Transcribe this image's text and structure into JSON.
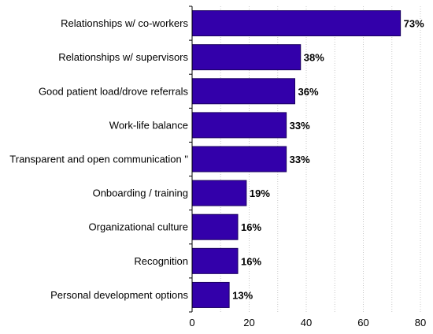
{
  "chart_data": {
    "type": "bar",
    "orientation": "horizontal",
    "categories": [
      "Relationships w/ co-workers",
      "Relationships w/ supervisors",
      "Good patient load/drove referrals",
      "Work-life balance",
      "Transparent and  open communication \"",
      "Onboarding / training",
      "Organizational culture",
      "Recognition",
      "Personal development options"
    ],
    "values": [
      73,
      38,
      36,
      33,
      33,
      19,
      16,
      16,
      13
    ],
    "value_labels": [
      "73%",
      "38%",
      "36%",
      "33%",
      "33%",
      "19%",
      "16%",
      "16%",
      "13%"
    ],
    "xlim": [
      0,
      80
    ],
    "xticks": [
      0,
      20,
      40,
      60,
      80
    ],
    "xtick_labels": [
      "0",
      "20",
      "40",
      "60",
      "80"
    ],
    "grid": "vertical dotted",
    "legend": "none",
    "title": "",
    "xlabel": "",
    "ylabel": "",
    "colors": {
      "bar_fill": "#3300aa",
      "bar_stroke": "#1a0060",
      "grid": "#c8c8c8",
      "axis": "#000000"
    }
  }
}
